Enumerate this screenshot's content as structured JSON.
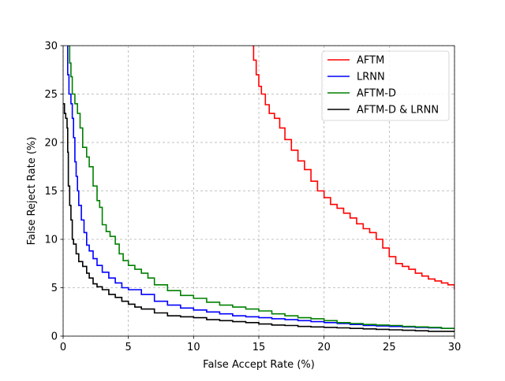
{
  "chart_data": {
    "type": "line",
    "title": "",
    "xlabel": "False Accept Rate (%)",
    "ylabel": "False Reject Rate (%)",
    "xlim": [
      0,
      30
    ],
    "ylim": [
      0,
      30
    ],
    "xticks": [
      "0",
      "5",
      "10",
      "15",
      "20",
      "25",
      "30"
    ],
    "yticks": [
      "0",
      "5",
      "10",
      "15",
      "20",
      "25",
      "30"
    ],
    "xtick_values": [
      0,
      5,
      10,
      15,
      20,
      25,
      30
    ],
    "ytick_values": [
      0,
      5,
      10,
      15,
      20,
      25,
      30
    ],
    "grid": true,
    "legend_position": "top-right",
    "series": [
      {
        "name": "AFTM",
        "color": "#ff0000",
        "points": [
          [
            14.5,
            30
          ],
          [
            14.6,
            28.5
          ],
          [
            14.8,
            27
          ],
          [
            15,
            25.8
          ],
          [
            15.2,
            25
          ],
          [
            15.5,
            23.9
          ],
          [
            15.8,
            23
          ],
          [
            16.2,
            22.5
          ],
          [
            16.6,
            21.5
          ],
          [
            17,
            20.3
          ],
          [
            17.5,
            19.2
          ],
          [
            18,
            18.1
          ],
          [
            18.5,
            17.2
          ],
          [
            19,
            16
          ],
          [
            19.5,
            15
          ],
          [
            20,
            14.3
          ],
          [
            20.5,
            13.6
          ],
          [
            21,
            13.2
          ],
          [
            21.5,
            12.7
          ],
          [
            22,
            12.2
          ],
          [
            22.5,
            11.6
          ],
          [
            23,
            11.1
          ],
          [
            23.5,
            10.7
          ],
          [
            24,
            10
          ],
          [
            24.5,
            9.1
          ],
          [
            25,
            8.2
          ],
          [
            25.5,
            7.5
          ],
          [
            26,
            7.2
          ],
          [
            26.5,
            6.9
          ],
          [
            27,
            6.5
          ],
          [
            27.5,
            6.2
          ],
          [
            28,
            5.9
          ],
          [
            28.5,
            5.7
          ],
          [
            29,
            5.5
          ],
          [
            29.5,
            5.3
          ],
          [
            30,
            4.8
          ]
        ]
      },
      {
        "name": "LRNN",
        "color": "#0000ff",
        "points": [
          [
            0.3,
            30
          ],
          [
            0.35,
            27
          ],
          [
            0.45,
            25
          ],
          [
            0.6,
            24
          ],
          [
            0.7,
            22.5
          ],
          [
            0.8,
            20.5
          ],
          [
            0.9,
            18
          ],
          [
            1,
            16.5
          ],
          [
            1.1,
            15
          ],
          [
            1.2,
            13.5
          ],
          [
            1.4,
            12
          ],
          [
            1.6,
            10.7
          ],
          [
            1.8,
            9.4
          ],
          [
            2,
            8.8
          ],
          [
            2.3,
            8
          ],
          [
            2.6,
            7.3
          ],
          [
            3,
            6.6
          ],
          [
            3.5,
            6
          ],
          [
            4,
            5.5
          ],
          [
            4.5,
            5
          ],
          [
            5,
            4.8
          ],
          [
            6,
            4.3
          ],
          [
            7,
            3.6
          ],
          [
            8,
            3.2
          ],
          [
            9,
            2.9
          ],
          [
            10,
            2.7
          ],
          [
            11,
            2.5
          ],
          [
            12,
            2.3
          ],
          [
            13,
            2.1
          ],
          [
            14,
            2
          ],
          [
            15,
            1.9
          ],
          [
            16,
            1.8
          ],
          [
            17,
            1.7
          ],
          [
            18,
            1.6
          ],
          [
            19,
            1.5
          ],
          [
            20,
            1.4
          ],
          [
            21,
            1.3
          ],
          [
            22,
            1.2
          ],
          [
            23,
            1.1
          ],
          [
            24,
            1.05
          ],
          [
            25,
            1
          ],
          [
            26,
            0.95
          ],
          [
            27,
            0.9
          ],
          [
            28,
            0.85
          ],
          [
            29,
            0.8
          ],
          [
            30,
            0.7
          ]
        ]
      },
      {
        "name": "AFTM-D",
        "color": "#008000",
        "points": [
          [
            0.4,
            30
          ],
          [
            0.5,
            28.2
          ],
          [
            0.6,
            26.8
          ],
          [
            0.7,
            25
          ],
          [
            0.9,
            24
          ],
          [
            1.1,
            23
          ],
          [
            1.3,
            21.5
          ],
          [
            1.5,
            19.5
          ],
          [
            1.8,
            18.5
          ],
          [
            2,
            17.5
          ],
          [
            2.3,
            15.5
          ],
          [
            2.6,
            14
          ],
          [
            2.8,
            13.3
          ],
          [
            3,
            11.5
          ],
          [
            3.3,
            10.8
          ],
          [
            3.6,
            10.3
          ],
          [
            4,
            9.5
          ],
          [
            4.3,
            8.5
          ],
          [
            4.6,
            7.8
          ],
          [
            5,
            7.3
          ],
          [
            5.5,
            6.9
          ],
          [
            6,
            6.5
          ],
          [
            6.5,
            6
          ],
          [
            7,
            5.3
          ],
          [
            8,
            4.7
          ],
          [
            9,
            4.2
          ],
          [
            10,
            3.9
          ],
          [
            11,
            3.5
          ],
          [
            12,
            3.2
          ],
          [
            13,
            3
          ],
          [
            14,
            2.8
          ],
          [
            15,
            2.6
          ],
          [
            16,
            2.3
          ],
          [
            17,
            2.1
          ],
          [
            18,
            1.9
          ],
          [
            19,
            1.8
          ],
          [
            20,
            1.6
          ],
          [
            21,
            1.4
          ],
          [
            22,
            1.3
          ],
          [
            23,
            1.2
          ],
          [
            24,
            1.15
          ],
          [
            25,
            1.1
          ],
          [
            26,
            1
          ],
          [
            27,
            0.95
          ],
          [
            28,
            0.9
          ],
          [
            29,
            0.8
          ],
          [
            30,
            0.75
          ]
        ]
      },
      {
        "name": "AFTM-D & LRNN",
        "color": "#000000",
        "points": [
          [
            0,
            24
          ],
          [
            0.1,
            23
          ],
          [
            0.2,
            22.5
          ],
          [
            0.3,
            21.5
          ],
          [
            0.35,
            19
          ],
          [
            0.4,
            15.5
          ],
          [
            0.5,
            13.5
          ],
          [
            0.6,
            12
          ],
          [
            0.7,
            10
          ],
          [
            0.8,
            9.5
          ],
          [
            1,
            8.5
          ],
          [
            1.2,
            7.7
          ],
          [
            1.5,
            7.2
          ],
          [
            1.8,
            6.5
          ],
          [
            2,
            6
          ],
          [
            2.3,
            5.4
          ],
          [
            2.6,
            5.1
          ],
          [
            3,
            4.8
          ],
          [
            3.5,
            4.3
          ],
          [
            4,
            4
          ],
          [
            4.5,
            3.6
          ],
          [
            5,
            3.3
          ],
          [
            5.5,
            3
          ],
          [
            6,
            2.8
          ],
          [
            7,
            2.4
          ],
          [
            8,
            2.1
          ],
          [
            9,
            2
          ],
          [
            10,
            1.9
          ],
          [
            11,
            1.7
          ],
          [
            12,
            1.6
          ],
          [
            13,
            1.5
          ],
          [
            14,
            1.4
          ],
          [
            15,
            1.25
          ],
          [
            16,
            1.15
          ],
          [
            17,
            1.1
          ],
          [
            18,
            1
          ],
          [
            19,
            0.95
          ],
          [
            20,
            0.9
          ],
          [
            21,
            0.85
          ],
          [
            22,
            0.8
          ],
          [
            23,
            0.75
          ],
          [
            24,
            0.7
          ],
          [
            25,
            0.65
          ],
          [
            26,
            0.6
          ],
          [
            27,
            0.55
          ],
          [
            28,
            0.5
          ],
          [
            29,
            0.5
          ],
          [
            30,
            0.45
          ]
        ]
      }
    ]
  }
}
